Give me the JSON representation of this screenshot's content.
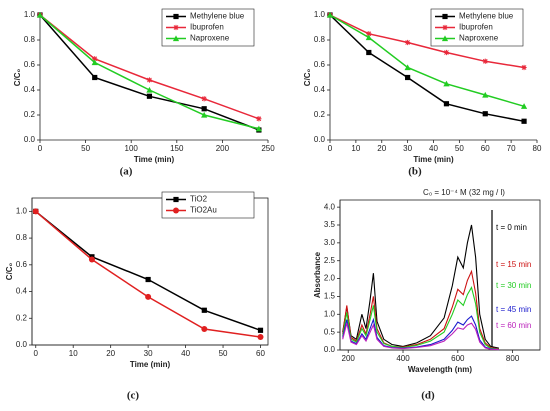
{
  "chart_data": [
    {
      "type": "line",
      "caption": "(a)",
      "x_label": "Time (min)",
      "y_label": "C/C₀",
      "x": [
        0,
        60,
        120,
        180,
        240
      ],
      "series": [
        {
          "name": "Methylene blue",
          "color": "#000000",
          "marker": "square",
          "values": [
            1.0,
            0.5,
            0.35,
            0.25,
            0.08
          ]
        },
        {
          "name": "Ibuprofen",
          "color": "#e8283a",
          "marker": "star",
          "values": [
            1.0,
            0.65,
            0.48,
            0.33,
            0.17
          ]
        },
        {
          "name": "Naproxene",
          "color": "#22cc22",
          "marker": "triangle",
          "values": [
            1.0,
            0.62,
            0.4,
            0.2,
            0.09
          ]
        }
      ],
      "xlim": [
        0,
        250
      ],
      "xticks": [
        0,
        50,
        100,
        150,
        200,
        250
      ],
      "ylim": [
        0,
        1.0
      ],
      "yticks": [
        {
          "value": 0,
          "label": "0.0"
        },
        0.2,
        0.4,
        0.6,
        0.8,
        {
          "value": 1,
          "label": "1.0"
        }
      ],
      "legend": "upper right"
    },
    {
      "type": "line",
      "caption": "(b)",
      "x_label": "Time (min)",
      "y_label": "C/C₀",
      "x": [
        0,
        15,
        30,
        45,
        60,
        75
      ],
      "series": [
        {
          "name": "Methylene blue",
          "color": "#000000",
          "marker": "square",
          "values": [
            1.0,
            0.7,
            0.5,
            0.29,
            0.21,
            0.15
          ]
        },
        {
          "name": "Ibuprofen",
          "color": "#e8283a",
          "marker": "star",
          "values": [
            1.0,
            0.85,
            0.78,
            0.7,
            0.63,
            0.58
          ]
        },
        {
          "name": "Naproxene",
          "color": "#22cc22",
          "marker": "triangle",
          "values": [
            1.0,
            0.82,
            0.58,
            0.45,
            0.36,
            0.27
          ]
        }
      ],
      "xlim": [
        0,
        80
      ],
      "xticks": [
        0,
        10,
        20,
        30,
        40,
        50,
        60,
        70,
        80
      ],
      "ylim": [
        0,
        1.0
      ],
      "yticks": [
        {
          "value": 0,
          "label": "0.0"
        },
        0.2,
        0.4,
        0.6,
        0.8,
        {
          "value": 1,
          "label": "1.0"
        }
      ],
      "legend": "upper right"
    },
    {
      "type": "line",
      "caption": "(c)",
      "x_label": "Time (min)",
      "y_label": "C/C₀",
      "frame": true,
      "x": [
        0,
        15,
        30,
        45,
        60
      ],
      "series": [
        {
          "name": "TiO2",
          "color": "#000000",
          "marker": "square",
          "values": [
            1.0,
            0.66,
            0.49,
            0.26,
            0.11
          ]
        },
        {
          "name": "TiO2Au",
          "color": "#e02020",
          "marker": "circle",
          "values": [
            1.0,
            0.64,
            0.36,
            0.12,
            0.06
          ]
        }
      ],
      "xlim": [
        -1,
        62
      ],
      "xticks": [
        0,
        10,
        20,
        30,
        40,
        50,
        60
      ],
      "ylim": [
        0,
        1.1
      ],
      "yticks": [
        {
          "value": 0,
          "label": "0.0"
        },
        0.2,
        0.4,
        0.6,
        0.8,
        {
          "value": 1,
          "label": "1.0"
        }
      ],
      "legend": "upper right"
    },
    {
      "type": "line",
      "caption": "(d)",
      "x_label": "Wavelength (nm)",
      "y_label": "Absorbance",
      "frame": true,
      "annotation": "C₀ = 10⁻⁴ M (32 mg / l)",
      "x": [
        180,
        195,
        210,
        230,
        250,
        265,
        280,
        292,
        305,
        330,
        360,
        400,
        450,
        500,
        550,
        580,
        600,
        620,
        635,
        650,
        665,
        680,
        700,
        720,
        750
      ],
      "series": [
        {
          "name": "t = 0 min",
          "color": "#000000",
          "values": [
            0.5,
            1.2,
            0.4,
            0.3,
            1.0,
            0.6,
            1.4,
            2.15,
            0.8,
            0.3,
            0.15,
            0.1,
            0.2,
            0.4,
            0.9,
            1.8,
            2.6,
            2.3,
            3.0,
            3.5,
            2.6,
            1.0,
            0.3,
            0.1,
            0.05
          ]
        },
        {
          "name": "t = 15 min",
          "color": "#cc1111",
          "values": [
            0.45,
            1.25,
            0.35,
            0.25,
            0.7,
            0.45,
            1.0,
            1.5,
            0.6,
            0.2,
            0.1,
            0.08,
            0.15,
            0.3,
            0.6,
            1.2,
            1.7,
            1.55,
            1.95,
            2.2,
            1.6,
            0.6,
            0.2,
            0.07,
            0.03
          ]
        },
        {
          "name": "t = 30 min",
          "color": "#22cc22",
          "values": [
            0.4,
            1.05,
            0.3,
            0.22,
            0.6,
            0.4,
            0.85,
            1.25,
            0.5,
            0.18,
            0.1,
            0.07,
            0.13,
            0.25,
            0.5,
            1.0,
            1.4,
            1.25,
            1.55,
            1.75,
            1.3,
            0.5,
            0.15,
            0.05,
            0.02
          ]
        },
        {
          "name": "t = 45 min",
          "color": "#1a1acc",
          "values": [
            0.35,
            0.85,
            0.25,
            0.18,
            0.45,
            0.3,
            0.6,
            0.85,
            0.35,
            0.12,
            0.07,
            0.05,
            0.08,
            0.15,
            0.3,
            0.55,
            0.78,
            0.7,
            0.85,
            0.95,
            0.7,
            0.28,
            0.08,
            0.03,
            0.01
          ]
        },
        {
          "name": "t = 60 min",
          "color": "#bb22bb",
          "values": [
            0.3,
            0.75,
            0.22,
            0.15,
            0.4,
            0.25,
            0.5,
            0.7,
            0.3,
            0.1,
            0.06,
            0.04,
            0.07,
            0.12,
            0.25,
            0.45,
            0.62,
            0.58,
            0.7,
            0.75,
            0.58,
            0.22,
            0.06,
            0.02,
            0.01
          ]
        }
      ],
      "xlim": [
        170,
        900
      ],
      "xticks": [
        200,
        400,
        600,
        800
      ],
      "ylim": [
        0,
        4.2
      ],
      "yticks": [
        {
          "value": 0,
          "label": "0.0"
        },
        0.5,
        {
          "value": 1,
          "label": "1.0"
        },
        1.5,
        {
          "value": 2,
          "label": "2.0"
        },
        2.5,
        {
          "value": 3,
          "label": "3.0"
        },
        3.5,
        {
          "value": 4,
          "label": "4.0"
        }
      ],
      "legend": "right"
    }
  ]
}
